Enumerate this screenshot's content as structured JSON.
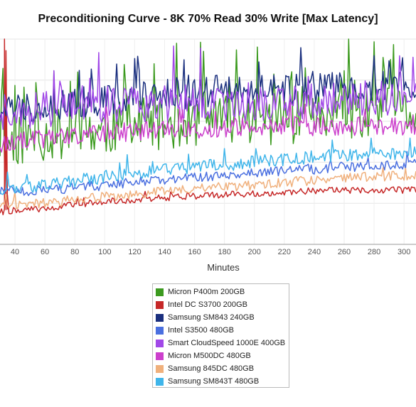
{
  "chart_data": {
    "type": "line",
    "title": "Preconditioning Curve - 8K 70% Read 30% Write [Max Latency]",
    "xlabel": "Minutes",
    "ylabel": "",
    "x_tick_labels": [
      "40",
      "60",
      "80",
      "100",
      "120",
      "140",
      "160",
      "180",
      "200",
      "220",
      "240",
      "260",
      "280",
      "300"
    ],
    "x_ticks": [
      40,
      60,
      80,
      100,
      120,
      140,
      160,
      180,
      200,
      220,
      240,
      260,
      280,
      300
    ],
    "xlim": [
      30,
      308
    ],
    "ylim": [
      0,
      125
    ],
    "y_grid_values": [
      25,
      50,
      75,
      100,
      125
    ],
    "grid": true,
    "legend_position": "bottom",
    "series": [
      {
        "name": "Micron P400m 200GB",
        "color": "#3c9a1f",
        "base": [
          [
            30,
            62
          ],
          [
            60,
            66
          ],
          [
            100,
            70
          ],
          [
            150,
            74
          ],
          [
            200,
            76
          ],
          [
            250,
            78
          ],
          [
            308,
            80
          ]
        ],
        "noise": 16,
        "spike_p": 0.13,
        "spike_range": [
          18,
          40
        ],
        "seed": 11
      },
      {
        "name": "Intel DC S3700 200GB",
        "color": "#c62828",
        "base": [
          [
            30,
            20
          ],
          [
            60,
            22
          ],
          [
            100,
            26
          ],
          [
            150,
            29
          ],
          [
            200,
            31
          ],
          [
            250,
            33
          ],
          [
            308,
            33
          ]
        ],
        "noise": 2,
        "spike_p": 0.01,
        "spike_range": [
          3,
          6
        ],
        "seed": 22,
        "extra_points": [
          [
            32,
            18
          ],
          [
            33,
            125
          ],
          [
            34,
            118
          ],
          [
            35,
            30
          ]
        ]
      },
      {
        "name": "Samsung SM843 240GB",
        "color": "#1a2f7e",
        "base": [
          [
            30,
            82
          ],
          [
            60,
            85
          ],
          [
            100,
            88
          ],
          [
            150,
            92
          ],
          [
            200,
            94
          ],
          [
            250,
            96
          ],
          [
            308,
            96
          ]
        ],
        "noise": 10,
        "spike_p": 0.06,
        "spike_range": [
          12,
          24
        ],
        "seed": 33
      },
      {
        "name": "Intel S3500 480GB",
        "color": "#4a6fe0",
        "base": [
          [
            30,
            32
          ],
          [
            60,
            33
          ],
          [
            100,
            36
          ],
          [
            150,
            40
          ],
          [
            200,
            44
          ],
          [
            250,
            46
          ],
          [
            308,
            49
          ]
        ],
        "noise": 3,
        "spike_p": 0.03,
        "spike_range": [
          4,
          8
        ],
        "seed": 44
      },
      {
        "name": "Smart CloudSpeed 1000E 400GB",
        "color": "#a148e8",
        "base": [
          [
            30,
            80
          ],
          [
            60,
            82
          ],
          [
            100,
            84
          ],
          [
            150,
            86
          ],
          [
            200,
            86
          ],
          [
            250,
            88
          ],
          [
            308,
            90
          ]
        ],
        "noise": 11,
        "spike_p": 0.07,
        "spike_range": [
          14,
          28
        ],
        "seed": 55
      },
      {
        "name": "Micron M500DC 480GB",
        "color": "#cc3fcc",
        "base": [
          [
            30,
            62
          ],
          [
            60,
            64
          ],
          [
            100,
            68
          ],
          [
            150,
            70
          ],
          [
            200,
            72
          ],
          [
            250,
            72
          ],
          [
            308,
            72
          ]
        ],
        "noise": 6,
        "spike_p": 0.05,
        "spike_range": [
          6,
          14
        ],
        "seed": 66
      },
      {
        "name": "Samsung 845DC 480GB",
        "color": "#f0b07c",
        "base": [
          [
            30,
            24
          ],
          [
            60,
            25
          ],
          [
            100,
            29
          ],
          [
            150,
            33
          ],
          [
            200,
            36
          ],
          [
            250,
            40
          ],
          [
            308,
            42
          ]
        ],
        "noise": 3,
        "spike_p": 0.02,
        "spike_range": [
          3,
          6
        ],
        "seed": 77
      },
      {
        "name": "Samsung SM843T 480GB",
        "color": "#3fb5ea",
        "base": [
          [
            30,
            34
          ],
          [
            60,
            36
          ],
          [
            100,
            41
          ],
          [
            150,
            46
          ],
          [
            200,
            50
          ],
          [
            250,
            54
          ],
          [
            308,
            56
          ]
        ],
        "noise": 4,
        "spike_p": 0.04,
        "spike_range": [
          5,
          10
        ],
        "seed": 88
      }
    ]
  }
}
